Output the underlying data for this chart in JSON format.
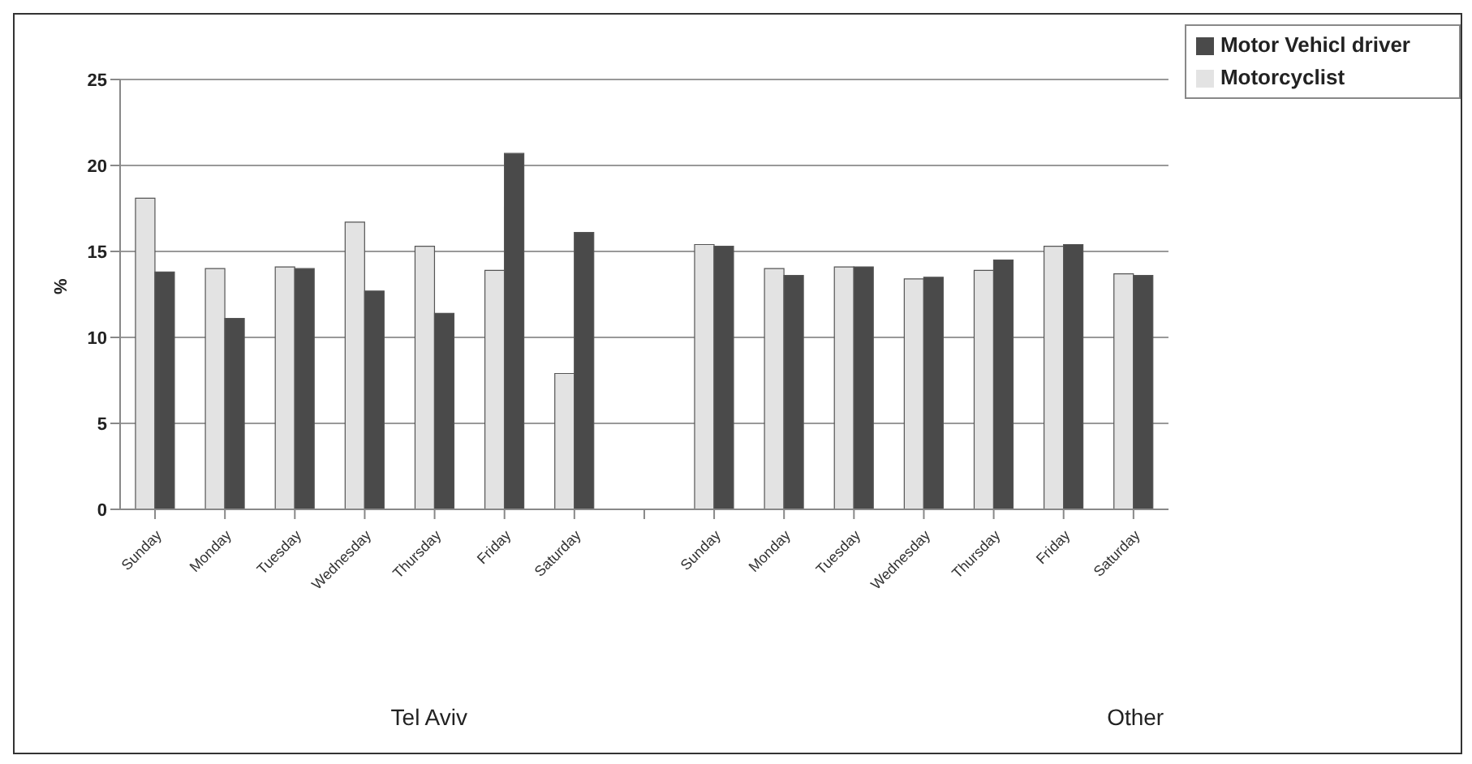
{
  "chart_data": {
    "type": "bar",
    "ylabel": "%",
    "categories": [
      "Sunday",
      "Monday",
      "Tuesday",
      "Wednesday",
      "Thursday",
      "Friday",
      "Saturday",
      null,
      "Sunday",
      "Monday",
      "Tuesday",
      "Wednesday",
      "Thursday",
      "Friday",
      "Saturday"
    ],
    "series": [
      {
        "name": "Motorcyclist",
        "color": "#e3e3e3",
        "values": [
          18.1,
          14.0,
          14.1,
          16.7,
          15.3,
          13.9,
          7.9,
          null,
          15.4,
          14.0,
          14.1,
          13.4,
          13.9,
          15.3,
          13.7
        ]
      },
      {
        "name": "Motor Vehicl driver",
        "color": "#4a4a4a",
        "values": [
          13.8,
          11.1,
          14.0,
          12.7,
          11.4,
          20.7,
          16.1,
          null,
          15.3,
          13.6,
          14.1,
          13.5,
          14.5,
          15.4,
          13.6
        ]
      }
    ],
    "ylim": [
      0,
      25
    ],
    "yticks": [
      0,
      5,
      10,
      15,
      20,
      25
    ],
    "grid": "y",
    "legend": "top right",
    "annotations": [
      "Tel Aviv",
      "Other"
    ]
  }
}
